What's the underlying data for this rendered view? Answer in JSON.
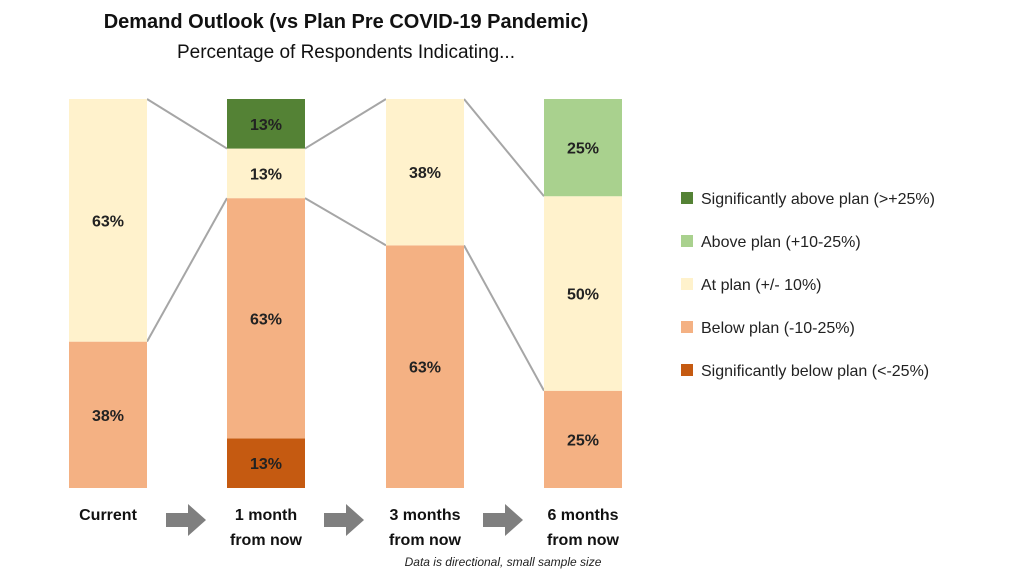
{
  "chart_data": {
    "type": "bar",
    "stacked": true,
    "title": "Demand Outlook (vs Plan Pre COVID-19 Pandemic)",
    "subtitle": "Percentage of Respondents Indicating...",
    "footnote": "Data is directional, small sample size",
    "categories": [
      "Current",
      "1 month from now",
      "3 months from now",
      "6 months from now"
    ],
    "category_lines": [
      [
        "Current"
      ],
      [
        "1 month",
        "from now"
      ],
      [
        "3 months",
        "from now"
      ],
      [
        "6 months",
        "from now"
      ]
    ],
    "ylim": [
      0,
      100
    ],
    "legend_position": "right",
    "series": [
      {
        "name": "Significantly below plan (<-25%)",
        "color": "#c55a11",
        "values": [
          0,
          13,
          0,
          0
        ]
      },
      {
        "name": "Below plan (-10-25%)",
        "color": "#f4b183",
        "values": [
          38,
          63,
          63,
          25
        ]
      },
      {
        "name": "At plan (+/- 10%)",
        "color": "#fff2cc",
        "values": [
          63,
          13,
          38,
          50
        ]
      },
      {
        "name": "Above plan (+10-25%)",
        "color": "#a9d18e",
        "values": [
          0,
          0,
          0,
          25
        ]
      },
      {
        "name": "Significantly above plan (>+25%)",
        "color": "#548235",
        "values": [
          0,
          13,
          0,
          0
        ]
      }
    ],
    "data_labels": [
      [
        "",
        "38%",
        "63%",
        "",
        ""
      ],
      [
        "13%",
        "63%",
        "13%",
        "",
        "13%"
      ],
      [
        "",
        "63%",
        "38%",
        "",
        ""
      ],
      [
        "",
        "25%",
        "50%",
        "25%",
        ""
      ]
    ],
    "legend_order": [
      4,
      3,
      2,
      1,
      0
    ],
    "arrow_color": "#7f7f7f",
    "connector_color": "#a6a6a6"
  }
}
